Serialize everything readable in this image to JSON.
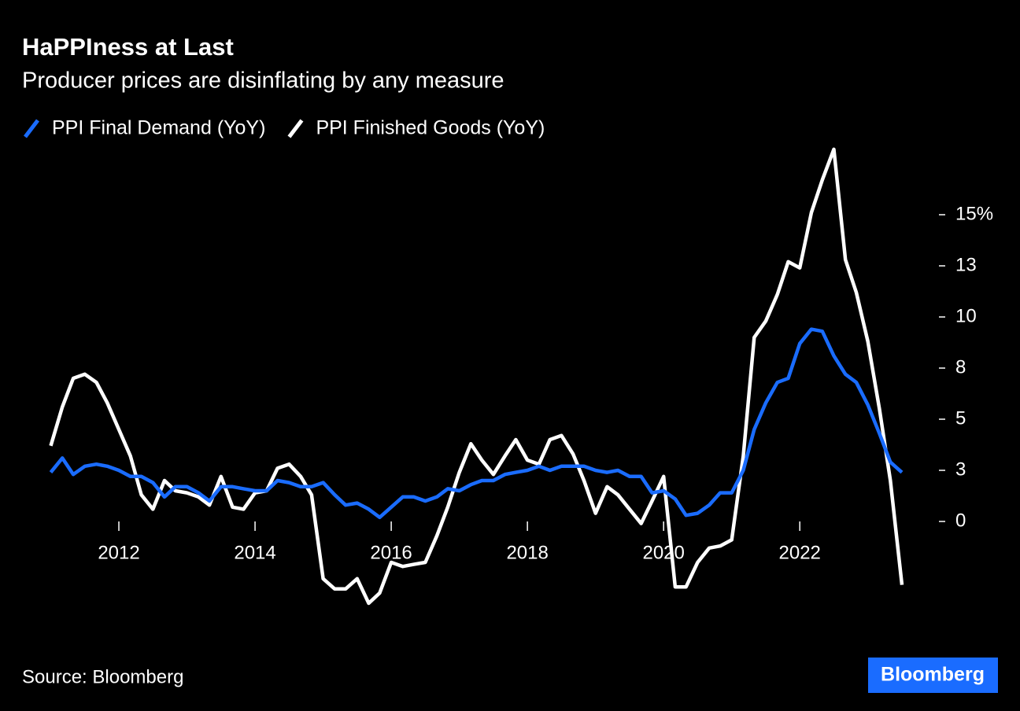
{
  "chart_data": {
    "type": "line",
    "title": "HaPPIness at Last",
    "subtitle": "Producer prices are disinflating by any measure",
    "source": "Source: Bloomberg",
    "logo": "Bloomberg",
    "x": [
      2011,
      2011.17,
      2011.33,
      2011.5,
      2011.67,
      2011.83,
      2012,
      2012.17,
      2012.33,
      2012.5,
      2012.67,
      2012.83,
      2013,
      2013.17,
      2013.33,
      2013.5,
      2013.67,
      2013.83,
      2014,
      2014.17,
      2014.33,
      2014.5,
      2014.67,
      2014.83,
      2015,
      2015.17,
      2015.33,
      2015.5,
      2015.67,
      2015.83,
      2016,
      2016.17,
      2016.33,
      2016.5,
      2016.67,
      2016.83,
      2017,
      2017.17,
      2017.33,
      2017.5,
      2017.67,
      2017.83,
      2018,
      2018.17,
      2018.33,
      2018.5,
      2018.67,
      2018.83,
      2019,
      2019.17,
      2019.33,
      2019.5,
      2019.67,
      2019.83,
      2020,
      2020.17,
      2020.33,
      2020.5,
      2020.67,
      2020.83,
      2021,
      2021.17,
      2021.33,
      2021.5,
      2021.67,
      2021.83,
      2022,
      2022.17,
      2022.33,
      2022.5,
      2022.67,
      2022.83,
      2023,
      2023.17,
      2023.33,
      2023.5
    ],
    "series": [
      {
        "name": "PPI Final Demand (YoY)",
        "color": "#1a6cff",
        "values": [
          2.4,
          3.1,
          2.3,
          2.7,
          2.8,
          2.7,
          2.5,
          2.2,
          2.2,
          1.9,
          1.2,
          1.7,
          1.7,
          1.4,
          1.0,
          1.7,
          1.7,
          1.6,
          1.5,
          1.5,
          2.0,
          1.9,
          1.7,
          1.7,
          1.9,
          1.3,
          0.8,
          0.9,
          0.6,
          0.2,
          0.7,
          1.2,
          1.2,
          1.0,
          1.2,
          1.6,
          1.5,
          1.8,
          2.0,
          2.0,
          2.3,
          2.4,
          2.5,
          2.7,
          2.5,
          2.7,
          2.7,
          2.7,
          2.5,
          2.4,
          2.5,
          2.2,
          2.2,
          1.4,
          1.5,
          1.1,
          0.3,
          0.4,
          0.8,
          1.4,
          1.4,
          2.5,
          4.5,
          5.8,
          6.8,
          7.0,
          8.7,
          9.4,
          9.3,
          8.1,
          7.2,
          6.8,
          5.7,
          4.3,
          2.9,
          2.4
        ]
      },
      {
        "name": "PPI Finished Goods (YoY)",
        "color": "#ffffff",
        "values": [
          3.7,
          5.6,
          7.0,
          7.2,
          6.8,
          5.8,
          4.5,
          3.2,
          1.3,
          0.6,
          2.0,
          1.5,
          1.4,
          1.2,
          0.8,
          2.2,
          0.7,
          0.6,
          1.4,
          1.5,
          2.6,
          2.8,
          2.2,
          1.3,
          -2.8,
          -3.3,
          -3.3,
          -2.8,
          -4.0,
          -3.5,
          -2.0,
          -2.2,
          -2.1,
          -2.0,
          -0.7,
          0.7,
          2.4,
          3.8,
          3.0,
          2.3,
          3.2,
          4.0,
          3.0,
          2.8,
          4.0,
          4.2,
          3.3,
          2.0,
          0.4,
          1.7,
          1.3,
          0.6,
          -0.1,
          1.0,
          2.2,
          -3.2,
          -3.2,
          -2.0,
          -1.3,
          -1.2,
          -0.9,
          3.2,
          9.0,
          9.8,
          11.1,
          12.7,
          12.4,
          15.1,
          16.7,
          18.2,
          12.8,
          11.2,
          8.8,
          5.5,
          2.0,
          -3.1
        ]
      }
    ],
    "xlim": [
      2011,
      2023.5
    ],
    "xticks": [
      2012,
      2014,
      2016,
      2018,
      2020,
      2022
    ],
    "ylim": [
      -5.5,
      18.5
    ],
    "yticks": [
      0,
      {
        "value": 2.5,
        "label": "3"
      },
      5,
      {
        "value": 7.5,
        "label": "8"
      },
      10,
      {
        "value": 12.5,
        "label": "13"
      },
      {
        "value": 15,
        "label": "15%"
      }
    ],
    "legend": "top-left"
  }
}
